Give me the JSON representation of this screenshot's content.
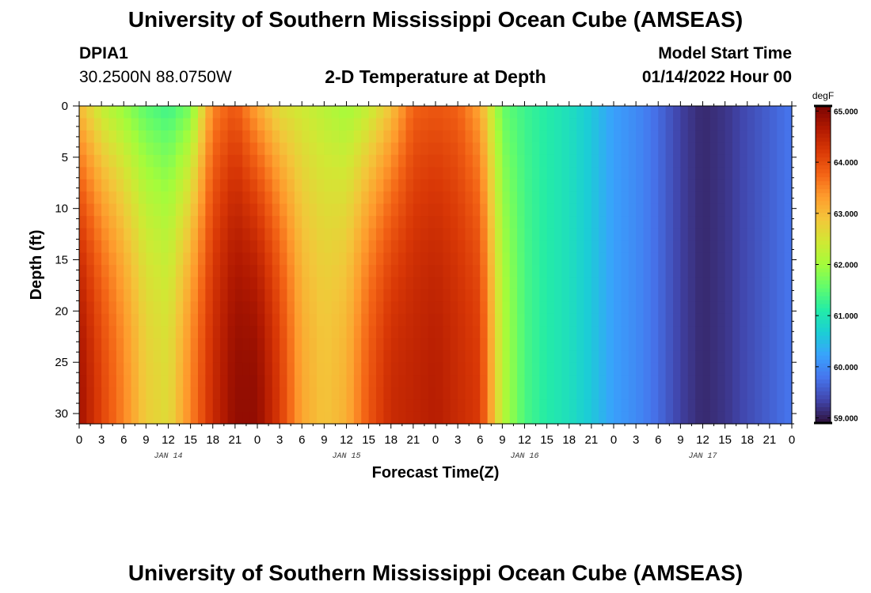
{
  "header": {
    "title": "University of Southern Mississippi Ocean Cube (AMSEAS)",
    "station": "DPIA1",
    "coords": "30.2500N  88.0750W",
    "product": "2-D Temperature at Depth",
    "model_label": "Model Start Time",
    "model_time": "01/14/2022 Hour 00"
  },
  "footer": {
    "title": "University of Southern Mississippi Ocean Cube (AMSEAS)"
  },
  "chart_data": {
    "type": "heatmap",
    "xlabel": "Forecast Time(Z)",
    "ylabel": "Depth (ft)",
    "x_tick_labels": [
      "0",
      "3",
      "6",
      "9",
      "12",
      "15",
      "18",
      "21",
      "0",
      "3",
      "6",
      "9",
      "12",
      "15",
      "18",
      "21",
      "0",
      "3",
      "6",
      "9",
      "12",
      "15",
      "18",
      "21",
      "0",
      "3",
      "6",
      "9",
      "12",
      "15",
      "18",
      "21",
      "0"
    ],
    "x_range_hours": [
      0,
      96
    ],
    "day_labels": [
      "JAN 14",
      "JAN 15",
      "JAN 16",
      "JAN 17"
    ],
    "y_ticks": [
      0,
      5,
      10,
      15,
      20,
      25,
      30
    ],
    "y_range": [
      0,
      31
    ],
    "y_inverted": true,
    "colorbar": {
      "units": "degF",
      "min": 58.9,
      "max": 65.1,
      "ticks": [
        "65.000",
        "64.000",
        "63.000",
        "62.000",
        "61.000",
        "60.000",
        "59.000"
      ],
      "colormap": "turbo"
    },
    "surface_profile": {
      "hours": [
        0,
        3,
        6,
        9,
        12,
        15,
        18,
        21,
        24,
        27,
        30,
        33,
        36,
        39,
        42,
        45,
        48,
        51,
        54,
        57,
        60,
        63,
        66,
        69,
        72,
        75,
        78,
        81,
        84,
        87,
        90,
        93,
        96
      ],
      "degF": [
        63.0,
        62.3,
        61.9,
        61.5,
        61.3,
        61.7,
        63.5,
        63.9,
        63.2,
        62.6,
        62.4,
        62.2,
        62.0,
        62.3,
        62.9,
        63.8,
        63.9,
        63.8,
        63.2,
        61.6,
        61.3,
        61.1,
        60.9,
        60.6,
        60.2,
        60.0,
        59.7,
        59.3,
        59.1,
        59.2,
        59.4,
        59.6,
        59.8
      ]
    },
    "bottom_profile": {
      "hours": [
        0,
        3,
        6,
        9,
        12,
        15,
        18,
        21,
        24,
        27,
        30,
        33,
        36,
        39,
        42,
        45,
        48,
        51,
        54,
        57,
        60,
        63,
        66,
        69,
        72,
        75,
        78,
        81,
        84,
        87,
        90,
        93,
        96
      ],
      "degF": [
        64.8,
        64.1,
        63.5,
        62.8,
        62.6,
        63.5,
        64.4,
        64.9,
        64.9,
        64.2,
        63.2,
        62.9,
        63.1,
        63.9,
        64.4,
        64.5,
        64.6,
        64.4,
        64.2,
        62.2,
        61.4,
        61.1,
        60.9,
        60.6,
        60.2,
        60.0,
        59.7,
        59.3,
        59.1,
        59.2,
        59.4,
        59.6,
        59.8
      ]
    },
    "colors": {
      "axis": "#000000",
      "frame": "#000000"
    }
  }
}
